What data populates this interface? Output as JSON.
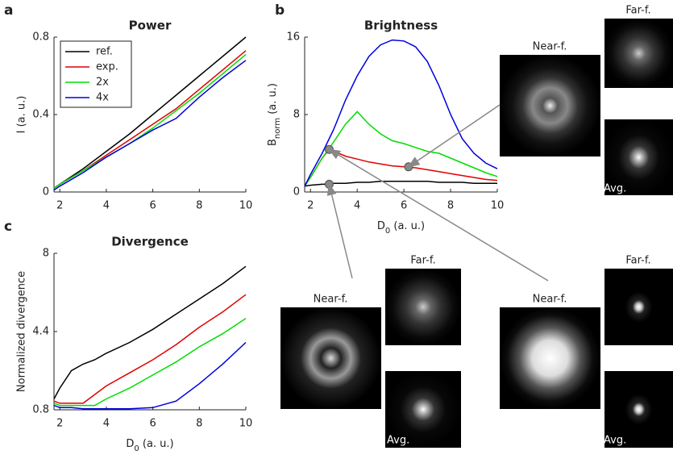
{
  "chart_data": [
    {
      "type": "line",
      "panel_label": "a",
      "title": "Power",
      "ylabel": "I (a. u.)",
      "x": [
        1.75,
        2,
        3,
        4,
        5,
        6,
        7,
        8,
        9,
        10
      ],
      "series": [
        {
          "name": "ref.",
          "color": "#000000",
          "values": [
            0.02,
            0.04,
            0.12,
            0.21,
            0.3,
            0.4,
            0.5,
            0.6,
            0.7,
            0.8
          ]
        },
        {
          "name": "exp.",
          "color": "#e00000",
          "values": [
            0.02,
            0.04,
            0.11,
            0.19,
            0.27,
            0.35,
            0.43,
            0.53,
            0.63,
            0.73
          ]
        },
        {
          "name": "2x",
          "color": "#00dd00",
          "values": [
            0.02,
            0.04,
            0.11,
            0.18,
            0.25,
            0.33,
            0.42,
            0.51,
            0.61,
            0.71
          ]
        },
        {
          "name": "4x",
          "color": "#0000dd",
          "values": [
            0.01,
            0.03,
            0.1,
            0.18,
            0.25,
            0.32,
            0.38,
            0.49,
            0.59,
            0.68
          ]
        }
      ],
      "xlim": [
        1.75,
        10
      ],
      "ylim": [
        0,
        0.8
      ],
      "xticks": [
        2,
        4,
        6,
        8,
        10
      ],
      "yticks": [
        0,
        0.4,
        0.8
      ],
      "legend": "upper left"
    },
    {
      "type": "line",
      "panel_label": "b",
      "title": "Brightness",
      "ylabel": {
        "text": "B",
        "sub": "norm",
        "rest": " (a. u.)"
      },
      "xlabel": {
        "text": "D",
        "sub": "0",
        "rest": " (a. u.)"
      },
      "x": [
        1.75,
        2,
        2.5,
        2.8,
        3,
        3.5,
        4,
        4.5,
        5,
        5.5,
        6,
        6.5,
        7,
        7.5,
        8,
        8.5,
        9,
        9.5,
        10
      ],
      "series": [
        {
          "color": "#000000",
          "values": [
            0.6,
            0.7,
            0.8,
            0.8,
            0.9,
            0.9,
            1.0,
            1.0,
            1.1,
            1.1,
            1.1,
            1.1,
            1.1,
            1.0,
            1.0,
            1.0,
            0.9,
            0.9,
            0.9
          ]
        },
        {
          "color": "#e00000",
          "values": [
            0.6,
            1.5,
            3.5,
            4.4,
            4.2,
            3.7,
            3.4,
            3.1,
            2.9,
            2.7,
            2.6,
            2.5,
            2.3,
            2.1,
            1.9,
            1.7,
            1.5,
            1.3,
            1.2
          ]
        },
        {
          "color": "#00dd00",
          "values": [
            0.6,
            1.5,
            3.5,
            4.5,
            5.2,
            7.0,
            8.3,
            7.0,
            6.0,
            5.3,
            5.0,
            4.6,
            4.2,
            4.0,
            3.5,
            3.0,
            2.5,
            2.0,
            1.6
          ]
        },
        {
          "color": "#0000dd",
          "values": [
            0.6,
            1.8,
            4.0,
            5.5,
            6.5,
            9.5,
            12.0,
            14.0,
            15.2,
            15.7,
            15.6,
            15.0,
            13.5,
            11.0,
            8.0,
            5.5,
            4.0,
            3.0,
            2.4
          ]
        }
      ],
      "highlights": {
        "x": [
          2.8,
          2.8,
          6.2
        ],
        "y": [
          0.8,
          4.4,
          2.6
        ],
        "color": "#888888"
      },
      "xlim": [
        1.75,
        10
      ],
      "ylim": [
        0,
        16
      ],
      "xticks": [
        2,
        4,
        6,
        8,
        10
      ],
      "yticks": [
        0,
        8,
        16
      ]
    },
    {
      "type": "line",
      "panel_label": "c",
      "title": "Divergence",
      "ylabel": "Normalized divergence",
      "xlabel": {
        "text": "D",
        "sub": "0",
        "rest": " (a. u.)"
      },
      "x": [
        1.75,
        2,
        2.5,
        3,
        3.5,
        4,
        5,
        6,
        7,
        8,
        9,
        10
      ],
      "series": [
        {
          "color": "#000000",
          "values": [
            1.3,
            1.8,
            2.6,
            2.9,
            3.1,
            3.4,
            3.9,
            4.5,
            5.2,
            5.9,
            6.6,
            7.4
          ]
        },
        {
          "color": "#e00000",
          "values": [
            1.2,
            1.1,
            1.1,
            1.1,
            1.5,
            1.9,
            2.5,
            3.1,
            3.8,
            4.6,
            5.3,
            6.1
          ]
        },
        {
          "color": "#00dd00",
          "values": [
            1.1,
            1.0,
            1.0,
            1.0,
            1.0,
            1.3,
            1.8,
            2.4,
            3.0,
            3.7,
            4.3,
            5.0
          ]
        },
        {
          "color": "#0000dd",
          "values": [
            1.0,
            0.9,
            0.9,
            0.85,
            0.85,
            0.85,
            0.85,
            0.9,
            1.2,
            2.0,
            2.9,
            3.9
          ]
        }
      ],
      "xlim": [
        1.75,
        10
      ],
      "ylim": [
        0.8,
        8
      ],
      "xticks": [
        2,
        4,
        6,
        8,
        10
      ],
      "yticks": [
        0.8,
        4.4,
        8
      ]
    }
  ],
  "insets": [
    {
      "near": "Near-f.",
      "far": "Far-f.",
      "avg": "Avg."
    },
    {
      "near": "Near-f.",
      "far": "Far-f.",
      "avg": "Avg."
    },
    {
      "near": "Near-f.",
      "far": "Far-f.",
      "avg": "Avg."
    }
  ]
}
